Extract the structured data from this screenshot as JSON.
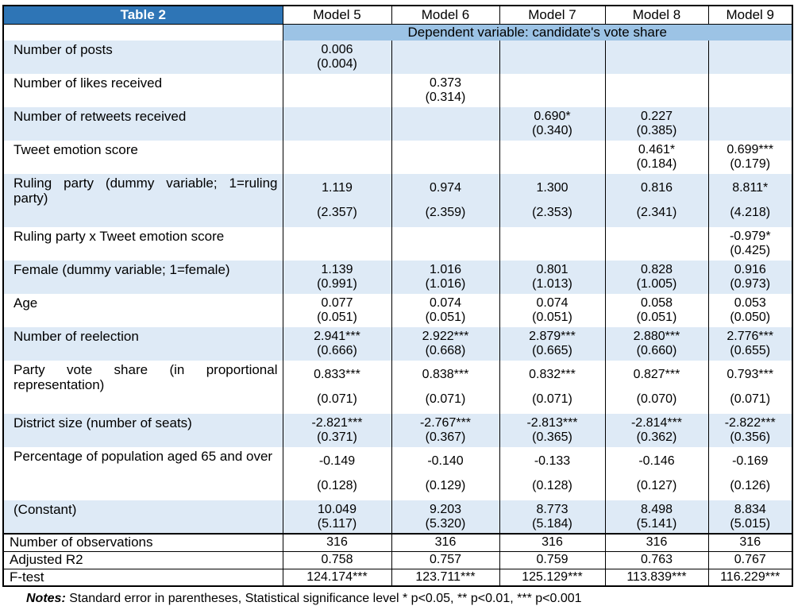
{
  "table": {
    "title": "Table 2",
    "model_headers": [
      "Model 5",
      "Model 6",
      "Model 7",
      "Model 8",
      "Model 9"
    ],
    "dependent_variable_label": "Dependent variable: candidate's vote share",
    "rows": [
      {
        "label": "Number of posts",
        "tall": false,
        "cells": [
          {
            "coef": "0.006",
            "se": "(0.004)"
          },
          {
            "coef": "",
            "se": ""
          },
          {
            "coef": "",
            "se": ""
          },
          {
            "coef": "",
            "se": ""
          },
          {
            "coef": "",
            "se": ""
          }
        ]
      },
      {
        "label": "Number of likes received",
        "tall": false,
        "cells": [
          {
            "coef": "",
            "se": ""
          },
          {
            "coef": "0.373",
            "se": "(0.314)"
          },
          {
            "coef": "",
            "se": ""
          },
          {
            "coef": "",
            "se": ""
          },
          {
            "coef": "",
            "se": ""
          }
        ]
      },
      {
        "label": "Number of retweets received",
        "tall": false,
        "cells": [
          {
            "coef": "",
            "se": ""
          },
          {
            "coef": "",
            "se": ""
          },
          {
            "coef": "0.690*",
            "se": "(0.340)"
          },
          {
            "coef": "0.227",
            "se": "(0.385)"
          },
          {
            "coef": "",
            "se": ""
          }
        ]
      },
      {
        "label": "Tweet emotion score",
        "tall": false,
        "cells": [
          {
            "coef": "",
            "se": ""
          },
          {
            "coef": "",
            "se": ""
          },
          {
            "coef": "",
            "se": ""
          },
          {
            "coef": "0.461*",
            "se": "(0.184)"
          },
          {
            "coef": "0.699***",
            "se": "(0.179)"
          }
        ]
      },
      {
        "label": "Ruling party (dummy variable; 1=ruling party)",
        "tall": true,
        "cells": [
          {
            "coef": "1.119",
            "se": "(2.357)"
          },
          {
            "coef": "0.974",
            "se": "(2.359)"
          },
          {
            "coef": "1.300",
            "se": "(2.353)"
          },
          {
            "coef": "0.816",
            "se": "(2.341)"
          },
          {
            "coef": "8.811*",
            "se": "(4.218)"
          }
        ]
      },
      {
        "label": "Ruling party x Tweet emotion score",
        "tall": false,
        "cells": [
          {
            "coef": "",
            "se": ""
          },
          {
            "coef": "",
            "se": ""
          },
          {
            "coef": "",
            "se": ""
          },
          {
            "coef": "",
            "se": ""
          },
          {
            "coef": "-0.979*",
            "se": "(0.425)"
          }
        ]
      },
      {
        "label": "Female (dummy variable; 1=female)",
        "tall": false,
        "cells": [
          {
            "coef": "1.139",
            "se": "(0.991)"
          },
          {
            "coef": "1.016",
            "se": "(1.016)"
          },
          {
            "coef": "0.801",
            "se": "(1.013)"
          },
          {
            "coef": "0.828",
            "se": "(1.005)"
          },
          {
            "coef": "0.916",
            "se": "(0.973)"
          }
        ]
      },
      {
        "label": "Age",
        "tall": false,
        "cells": [
          {
            "coef": "0.077",
            "se": "(0.051)"
          },
          {
            "coef": "0.074",
            "se": "(0.051)"
          },
          {
            "coef": "0.074",
            "se": "(0.051)"
          },
          {
            "coef": "0.058",
            "se": "(0.051)"
          },
          {
            "coef": "0.053",
            "se": "(0.050)"
          }
        ]
      },
      {
        "label": "Number of reelection",
        "tall": false,
        "cells": [
          {
            "coef": "2.941***",
            "se": "(0.666)"
          },
          {
            "coef": "2.922***",
            "se": "(0.668)"
          },
          {
            "coef": "2.879***",
            "se": "(0.665)"
          },
          {
            "coef": "2.880***",
            "se": "(0.660)"
          },
          {
            "coef": "2.776***",
            "se": "(0.655)"
          }
        ]
      },
      {
        "label": "Party vote share (in proportional representation)",
        "tall": true,
        "cells": [
          {
            "coef": "0.833***",
            "se": "(0.071)"
          },
          {
            "coef": "0.838***",
            "se": "(0.071)"
          },
          {
            "coef": "0.832***",
            "se": "(0.071)"
          },
          {
            "coef": "0.827***",
            "se": "(0.070)"
          },
          {
            "coef": "0.793***",
            "se": "(0.071)"
          }
        ]
      },
      {
        "label": "District size (number of seats)",
        "tall": false,
        "cells": [
          {
            "coef": "-2.821***",
            "se": "(0.371)"
          },
          {
            "coef": "-2.767***",
            "se": "(0.367)"
          },
          {
            "coef": "-2.813***",
            "se": "(0.365)"
          },
          {
            "coef": "-2.814***",
            "se": "(0.362)"
          },
          {
            "coef": "-2.822***",
            "se": "(0.356)"
          }
        ]
      },
      {
        "label": "Percentage of population aged 65 and over",
        "tall": true,
        "cells": [
          {
            "coef": "-0.149",
            "se": "(0.128)"
          },
          {
            "coef": "-0.140",
            "se": "(0.129)"
          },
          {
            "coef": "-0.133",
            "se": "(0.128)"
          },
          {
            "coef": "-0.146",
            "se": "(0.127)"
          },
          {
            "coef": "-0.169",
            "se": "(0.126)"
          }
        ]
      },
      {
        "label": "(Constant)",
        "tall": false,
        "cells": [
          {
            "coef": "10.049",
            "se": "(5.117)"
          },
          {
            "coef": "9.203",
            "se": "(5.320)"
          },
          {
            "coef": "8.773",
            "se": "(5.184)"
          },
          {
            "coef": "8.498",
            "se": "(5.141)"
          },
          {
            "coef": "8.834",
            "se": "(5.015)"
          }
        ]
      }
    ],
    "summary_rows": [
      {
        "label": "Number of observations",
        "values": [
          "316",
          "316",
          "316",
          "316",
          "316"
        ]
      },
      {
        "label": "Adjusted R2",
        "values": [
          "0.758",
          "0.757",
          "0.759",
          "0.763",
          "0.767"
        ]
      },
      {
        "label": "F-test",
        "values": [
          "124.174***",
          "123.711***",
          "125.129***",
          "113.839***",
          "116.229***"
        ]
      }
    ],
    "notes_label": "Notes:",
    "notes_text": " Standard error in parentheses, Statistical significance level * p<0.05, ** p<0.01, *** p<0.001"
  },
  "colors": {
    "header_blue": "#2E75B6",
    "band_blue": "#9CC3E5",
    "row_shade_blue": "#DEEAF6",
    "border_black": "#000000"
  }
}
